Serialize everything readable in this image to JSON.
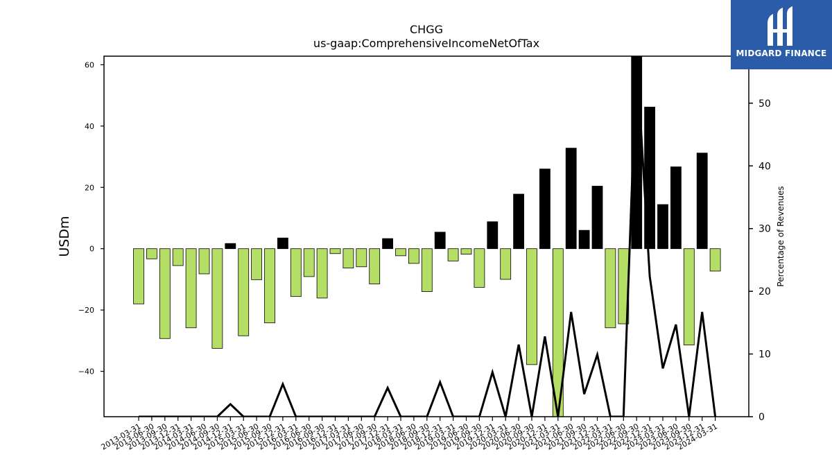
{
  "chart_data": {
    "type": "bar",
    "title": "CHGG",
    "subtitle": "us-gaap:ComprehensiveIncomeNetOfTax",
    "ylabel": "USDm",
    "y2label": "Percentage of Revenues",
    "ylim": [
      -54.8,
      62.8
    ],
    "y2lim": [
      0,
      57.5
    ],
    "yticks": [
      "60",
      "40",
      "20",
      "0",
      "−20",
      "−40"
    ],
    "y2ticks": [
      "0",
      "10",
      "20",
      "30",
      "40",
      "50"
    ],
    "legend": "none",
    "grid": false,
    "positive_color": "#000000",
    "negative_color": "#b5de66",
    "categories": [
      "2013-03-31",
      "2013-06-30",
      "2013-09-30",
      "2013-12-31",
      "2014-03-31",
      "2014-06-30",
      "2014-09-30",
      "2014-12-31",
      "2015-03-31",
      "2015-06-30",
      "2015-09-30",
      "2015-12-31",
      "2016-03-31",
      "2016-06-30",
      "2016-09-30",
      "2016-12-31",
      "2017-03-31",
      "2017-06-30",
      "2017-09-30",
      "2017-12-31",
      "2018-03-31",
      "2018-06-30",
      "2018-09-30",
      "2018-12-31",
      "2019-03-31",
      "2019-06-30",
      "2019-09-30",
      "2019-12-31",
      "2020-03-31",
      "2020-06-30",
      "2020-09-30",
      "2020-12-31",
      "2021-03-31",
      "2021-06-30",
      "2021-09-30",
      "2021-12-31",
      "2022-03-31",
      "2022-06-30",
      "2022-09-30",
      "2022-12-31",
      "2023-03-31",
      "2023-06-30",
      "2023-09-30",
      "2023-12-31",
      "2024-03-31"
    ],
    "series": [
      {
        "values": [
          -18.0,
          -3.3,
          -29.3,
          -5.5,
          -25.8,
          -8.2,
          -32.5,
          1.7,
          -28.4,
          -10.1,
          -24.2,
          3.5,
          -15.6,
          -9.1,
          -16.1,
          -1.6,
          -6.3,
          -5.9,
          -11.5,
          3.3,
          -2.3,
          -4.8,
          -14.0,
          5.4,
          -4.0,
          -1.8,
          -12.6,
          8.8,
          -10.0,
          17.8,
          -37.8,
          26.0,
          -54.8,
          32.8,
          6.0,
          20.4,
          -25.8,
          -24.5,
          62.8,
          46.2,
          14.4,
          26.7,
          -31.4,
          31.2,
          -7.3
        ]
      },
      {
        "type": "line",
        "axis": "y2",
        "values": [
          0,
          0,
          0,
          0,
          0,
          0,
          0,
          2.0,
          0,
          0,
          0,
          5.2,
          0,
          0,
          0,
          0,
          0,
          0,
          0,
          4.6,
          0,
          0,
          0,
          5.5,
          0,
          0,
          0,
          7.1,
          0,
          11.5,
          0,
          12.8,
          0,
          16.7,
          3.6,
          9.9,
          0,
          0,
          57.5,
          22.4,
          7.7,
          14.7,
          0,
          16.7,
          0
        ]
      }
    ]
  },
  "logo": {
    "text": "MIDGARD FINANCE"
  }
}
